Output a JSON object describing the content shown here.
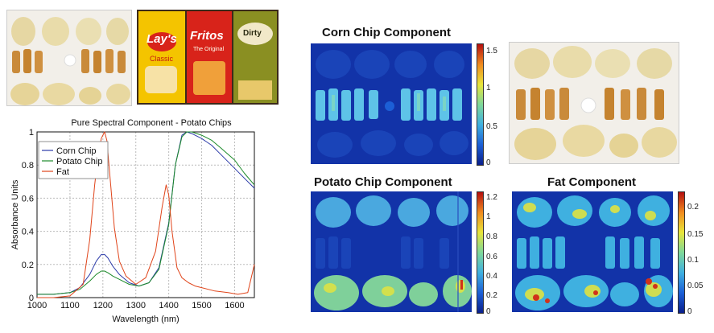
{
  "photos": {
    "top_left_chips": "chip-photo",
    "bags": [
      {
        "brand": "Lay's",
        "sub": "Classic",
        "color": "#f4c400"
      },
      {
        "brand": "Fritos",
        "sub": "The Original",
        "color": "#d8231a"
      },
      {
        "brand": "Dirty",
        "sub": "",
        "color": "#8a8f22"
      }
    ]
  },
  "chart_data": {
    "type": "line",
    "title": "Pure Spectral Component - Potato Chips",
    "xlabel": "Wavelength (nm)",
    "ylabel": "Absorbance Units",
    "xlim": [
      1000,
      1660
    ],
    "ylim": [
      0,
      1
    ],
    "xticks": [
      "1000",
      "1100",
      "1200",
      "1300",
      "1400",
      "1500",
      "1600"
    ],
    "yticks": [
      "0",
      "0.2",
      "0.4",
      "0.6",
      "0.8",
      "1"
    ],
    "legend": "top-left",
    "series": [
      {
        "name": "Corn Chip",
        "color": "#2b3aa8",
        "x": [
          1000,
          1050,
          1100,
          1130,
          1160,
          1180,
          1195,
          1205,
          1215,
          1230,
          1250,
          1280,
          1310,
          1340,
          1370,
          1400,
          1420,
          1440,
          1455,
          1470,
          1500,
          1530,
          1560,
          1600,
          1630,
          1660
        ],
        "y": [
          0.02,
          0.02,
          0.03,
          0.06,
          0.14,
          0.22,
          0.26,
          0.26,
          0.24,
          0.19,
          0.14,
          0.09,
          0.07,
          0.09,
          0.18,
          0.45,
          0.8,
          0.98,
          1.0,
          0.99,
          0.96,
          0.92,
          0.86,
          0.78,
          0.72,
          0.66
        ]
      },
      {
        "name": "Potato Chip",
        "color": "#1c8a2a",
        "x": [
          1000,
          1050,
          1100,
          1130,
          1160,
          1180,
          1195,
          1205,
          1215,
          1230,
          1250,
          1280,
          1310,
          1340,
          1370,
          1400,
          1420,
          1440,
          1455,
          1470,
          1500,
          1530,
          1560,
          1600,
          1630,
          1660
        ],
        "y": [
          0.02,
          0.02,
          0.03,
          0.05,
          0.1,
          0.14,
          0.16,
          0.16,
          0.15,
          0.13,
          0.11,
          0.08,
          0.07,
          0.09,
          0.17,
          0.44,
          0.8,
          0.97,
          1.0,
          1.0,
          0.98,
          0.95,
          0.9,
          0.83,
          0.75,
          0.68
        ]
      },
      {
        "name": "Fat",
        "color": "#e0441a",
        "x": [
          1000,
          1050,
          1100,
          1140,
          1160,
          1175,
          1185,
          1195,
          1205,
          1212,
          1222,
          1235,
          1250,
          1270,
          1300,
          1330,
          1360,
          1380,
          1392,
          1400,
          1410,
          1425,
          1440,
          1460,
          1480,
          1500,
          1540,
          1580,
          1610,
          1640,
          1660
        ],
        "y": [
          0.0,
          0.0,
          0.01,
          0.08,
          0.35,
          0.68,
          0.85,
          0.96,
          1.0,
          0.95,
          0.72,
          0.42,
          0.22,
          0.13,
          0.08,
          0.12,
          0.28,
          0.55,
          0.68,
          0.62,
          0.4,
          0.18,
          0.12,
          0.09,
          0.07,
          0.06,
          0.04,
          0.03,
          0.02,
          0.03,
          0.2
        ]
      }
    ]
  },
  "maps": {
    "corn": {
      "title": "Corn Chip Component",
      "ticks": [
        "1.5",
        "1",
        "0.5",
        "0"
      ]
    },
    "potato": {
      "title": "Potato Chip Component",
      "ticks": [
        "1.2",
        "1",
        "0.8",
        "0.6",
        "0.4",
        "0.2",
        "0"
      ]
    },
    "fat": {
      "title": "Fat Component",
      "ticks": [
        "0.2",
        "0.15",
        "0.1",
        "0.05",
        "0"
      ]
    }
  },
  "colors": {
    "background_blue": "#1233a8",
    "colormap": [
      "#0a1f8c",
      "#1c5fd6",
      "#3fb0e0",
      "#7fd89a",
      "#e8e53a",
      "#f08a1e",
      "#b40f0f"
    ]
  }
}
